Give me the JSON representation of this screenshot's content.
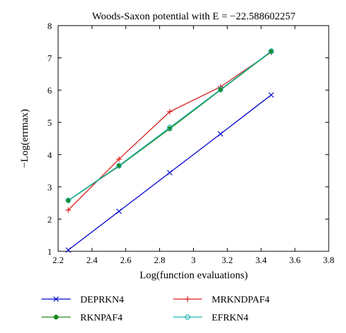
{
  "chart_data": {
    "type": "line",
    "title": "Woods-Saxon potential with E = −22.588602257",
    "xlabel": "Log(function evaluations)",
    "ylabel": "−Log(errmax)",
    "xlim": [
      2.2,
      3.8
    ],
    "ylim": [
      1,
      8
    ],
    "xticks": [
      "2.2",
      "2.4",
      "2.6",
      "2.8",
      "3",
      "3.2",
      "3.4",
      "3.6",
      "3.8"
    ],
    "yticks": [
      "1",
      "2",
      "3",
      "4",
      "5",
      "6",
      "7",
      "8"
    ],
    "grid": false,
    "legend_position": "bottom",
    "series": [
      {
        "name": "DEPRKN4",
        "color": "#0000cc",
        "marker": "x",
        "x": [
          2.26,
          2.56,
          2.86,
          3.16,
          3.46
        ],
        "y": [
          1.04,
          2.24,
          3.44,
          4.64,
          5.85
        ]
      },
      {
        "name": "MRKNDPAF4",
        "color": "#d62020",
        "marker": "plus",
        "x": [
          2.26,
          2.56,
          2.86,
          3.16,
          3.46
        ],
        "y": [
          2.28,
          3.86,
          5.33,
          6.1,
          7.18
        ]
      },
      {
        "name": "RKNPAF4",
        "color": "#1a8a1a",
        "marker": "dot",
        "x": [
          2.26,
          2.56,
          2.86,
          3.16,
          3.46
        ],
        "y": [
          2.57,
          3.64,
          4.8,
          6.0,
          7.19
        ]
      },
      {
        "name": "EFRKN4",
        "color": "#20b2b2",
        "marker": "circle",
        "x": [
          2.26,
          2.56,
          2.86,
          3.16,
          3.46
        ],
        "y": [
          2.58,
          3.66,
          4.84,
          6.02,
          7.21
        ]
      }
    ]
  }
}
